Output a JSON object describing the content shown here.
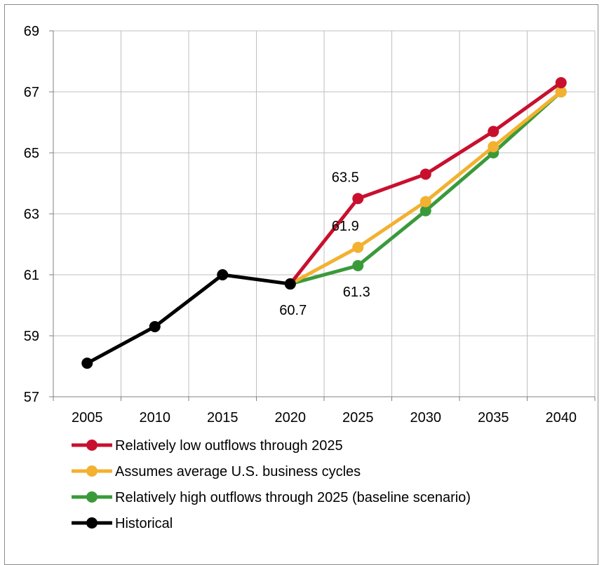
{
  "chart_data": {
    "type": "line",
    "x": [
      "2005",
      "2010",
      "2015",
      "2020",
      "2025",
      "2030",
      "2035",
      "2040"
    ],
    "ylim": [
      57,
      69
    ],
    "yticks": [
      "57",
      "59",
      "61",
      "63",
      "65",
      "67",
      "69"
    ],
    "grid": true,
    "legend_position": "bottom",
    "series": [
      {
        "name": "Relatively low outflows through 2025",
        "color": "#c8102e",
        "points": [
          [
            "2020",
            60.7
          ],
          [
            "2025",
            63.5
          ],
          [
            "2030",
            64.3
          ],
          [
            "2035",
            65.7
          ],
          [
            "2040",
            67.3
          ]
        ]
      },
      {
        "name": "Assumes average U.S. business cycles",
        "color": "#f2b130",
        "points": [
          [
            "2020",
            60.7
          ],
          [
            "2025",
            61.9
          ],
          [
            "2030",
            63.4
          ],
          [
            "2035",
            65.2
          ],
          [
            "2040",
            67.0
          ]
        ]
      },
      {
        "name": "Relatively high outflows through 2025 (baseline scenario)",
        "color": "#3a9a3a",
        "points": [
          [
            "2020",
            60.7
          ],
          [
            "2025",
            61.3
          ],
          [
            "2030",
            63.1
          ],
          [
            "2035",
            65.0
          ],
          [
            "2040",
            67.0
          ]
        ]
      },
      {
        "name": "Historical",
        "color": "#000000",
        "points": [
          [
            "2005",
            58.1
          ],
          [
            "2010",
            59.3
          ],
          [
            "2015",
            61.0
          ],
          [
            "2020",
            60.7
          ]
        ]
      }
    ],
    "data_labels": [
      {
        "x": "2025",
        "y": 63.5,
        "text": "63.5",
        "series": 0
      },
      {
        "x": "2025",
        "y": 61.9,
        "text": "61.9",
        "series": 1
      },
      {
        "x": "2025",
        "y": 61.3,
        "text": "61.3",
        "series": 2
      },
      {
        "x": "2020",
        "y": 60.7,
        "text": "60.7",
        "series": 3
      }
    ]
  }
}
